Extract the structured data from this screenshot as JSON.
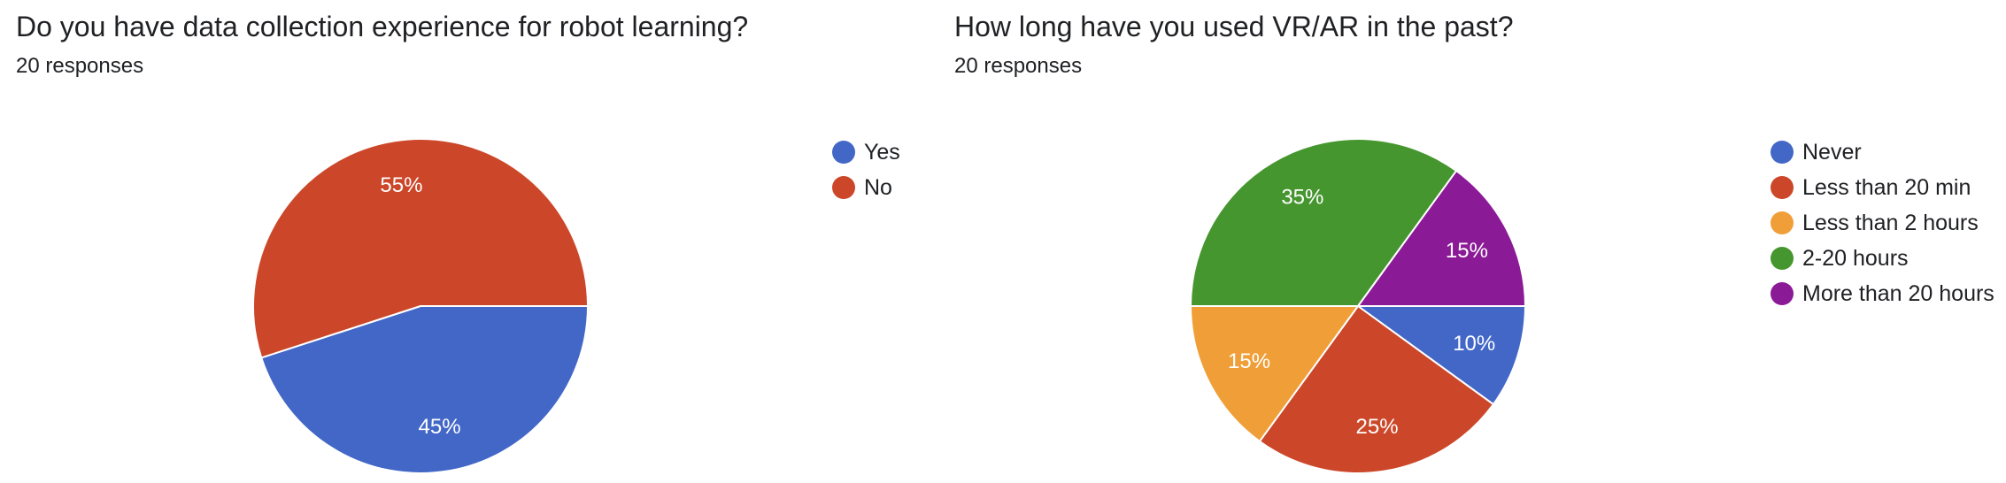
{
  "chart_data": [
    {
      "type": "pie",
      "title": "Do you have data collection experience for robot learning?",
      "subtitle": "20 responses",
      "categories": [
        "Yes",
        "No"
      ],
      "values": [
        45,
        55
      ],
      "labels": [
        "45%",
        "55%"
      ],
      "colors": [
        "#4267c7",
        "#cc4729"
      ],
      "legend": "right"
    },
    {
      "type": "pie",
      "title": "How long have you used VR/AR in the past?",
      "subtitle": "20 responses",
      "categories": [
        "Never",
        "Less than 20 min",
        "Less than 2 hours",
        "2-20 hours",
        "More than 20 hours"
      ],
      "values": [
        10,
        25,
        15,
        35,
        15
      ],
      "labels": [
        "10%",
        "25%",
        "15%",
        "35%",
        "15%"
      ],
      "colors": [
        "#4267c7",
        "#cc4729",
        "#f09f38",
        "#46962f",
        "#8b1a97"
      ],
      "legend": "right"
    }
  ]
}
